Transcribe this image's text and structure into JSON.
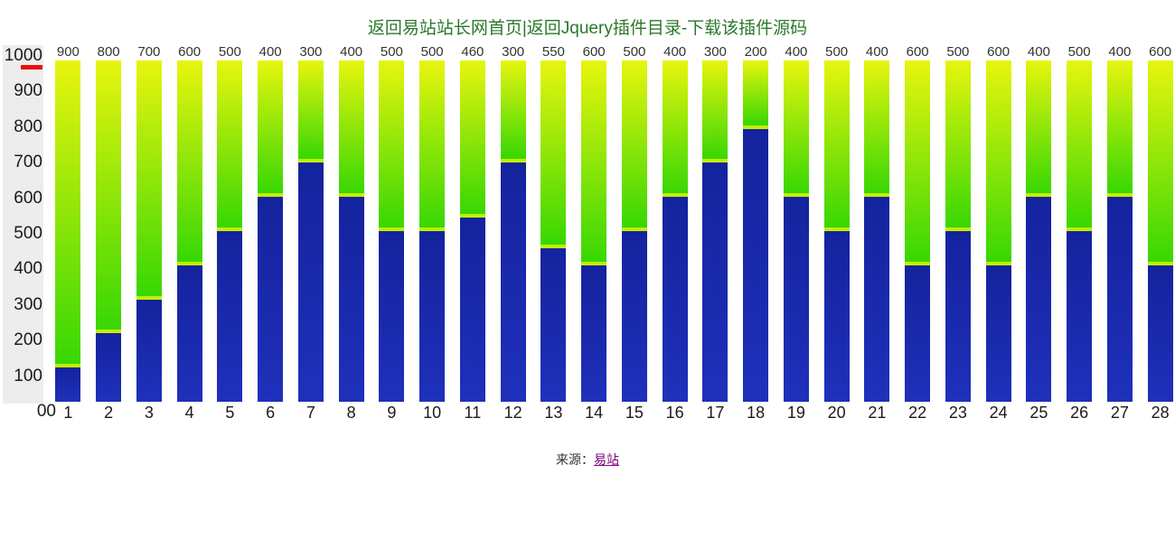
{
  "header": {
    "link_home": "返回易站站长网首页",
    "separator": "|",
    "link_plugin": "返回Jquery插件目录-下载该插件源码"
  },
  "chart_data": {
    "type": "bar",
    "stacked": true,
    "title": "",
    "categories": [
      "1",
      "2",
      "3",
      "4",
      "5",
      "6",
      "7",
      "8",
      "9",
      "10",
      "11",
      "12",
      "13",
      "14",
      "15",
      "16",
      "17",
      "18",
      "19",
      "20",
      "21",
      "22",
      "23",
      "24",
      "25",
      "26",
      "27",
      "28"
    ],
    "bar_value_labels": [
      "900",
      "800",
      "700",
      "600",
      "500",
      "400",
      "300",
      "400",
      "500",
      "500",
      "460",
      "300",
      "550",
      "600",
      "500",
      "400",
      "300",
      "200",
      "400",
      "500",
      "400",
      "600",
      "500",
      "600",
      "400",
      "500",
      "400",
      "600"
    ],
    "series": [
      {
        "name": "blue-lower-segment",
        "values": [
          100,
          200,
          300,
          400,
          500,
          600,
          700,
          600,
          500,
          500,
          540,
          700,
          450,
          400,
          500,
          600,
          700,
          800,
          600,
          500,
          600,
          400,
          500,
          400,
          600,
          500,
          600,
          400
        ],
        "color_top": "#14239d",
        "color_bottom": "#1f30bb"
      },
      {
        "name": "green-upper-segment",
        "values": [
          900,
          800,
          700,
          600,
          500,
          400,
          300,
          400,
          500,
          500,
          460,
          300,
          550,
          600,
          500,
          400,
          300,
          200,
          400,
          500,
          400,
          600,
          500,
          600,
          400,
          500,
          400,
          600
        ],
        "color_top": "#e7f50e",
        "color_bottom": "#38d703",
        "bottom_edge_color": "#c3ef00"
      }
    ],
    "y_ticks": [
      "1000",
      "900",
      "800",
      "700",
      "600",
      "500",
      "400",
      "300",
      "200",
      "100",
      "00"
    ],
    "ylim": [
      0,
      1000
    ],
    "grid": false,
    "legend": "none"
  },
  "footer": {
    "source_label": "来源：",
    "source_link": "易站"
  },
  "colors": {
    "title_green": "#2a7a2a",
    "axis_panel_gray": "#ededed",
    "marker_red": "#e81010",
    "link_purple": "#800080"
  }
}
